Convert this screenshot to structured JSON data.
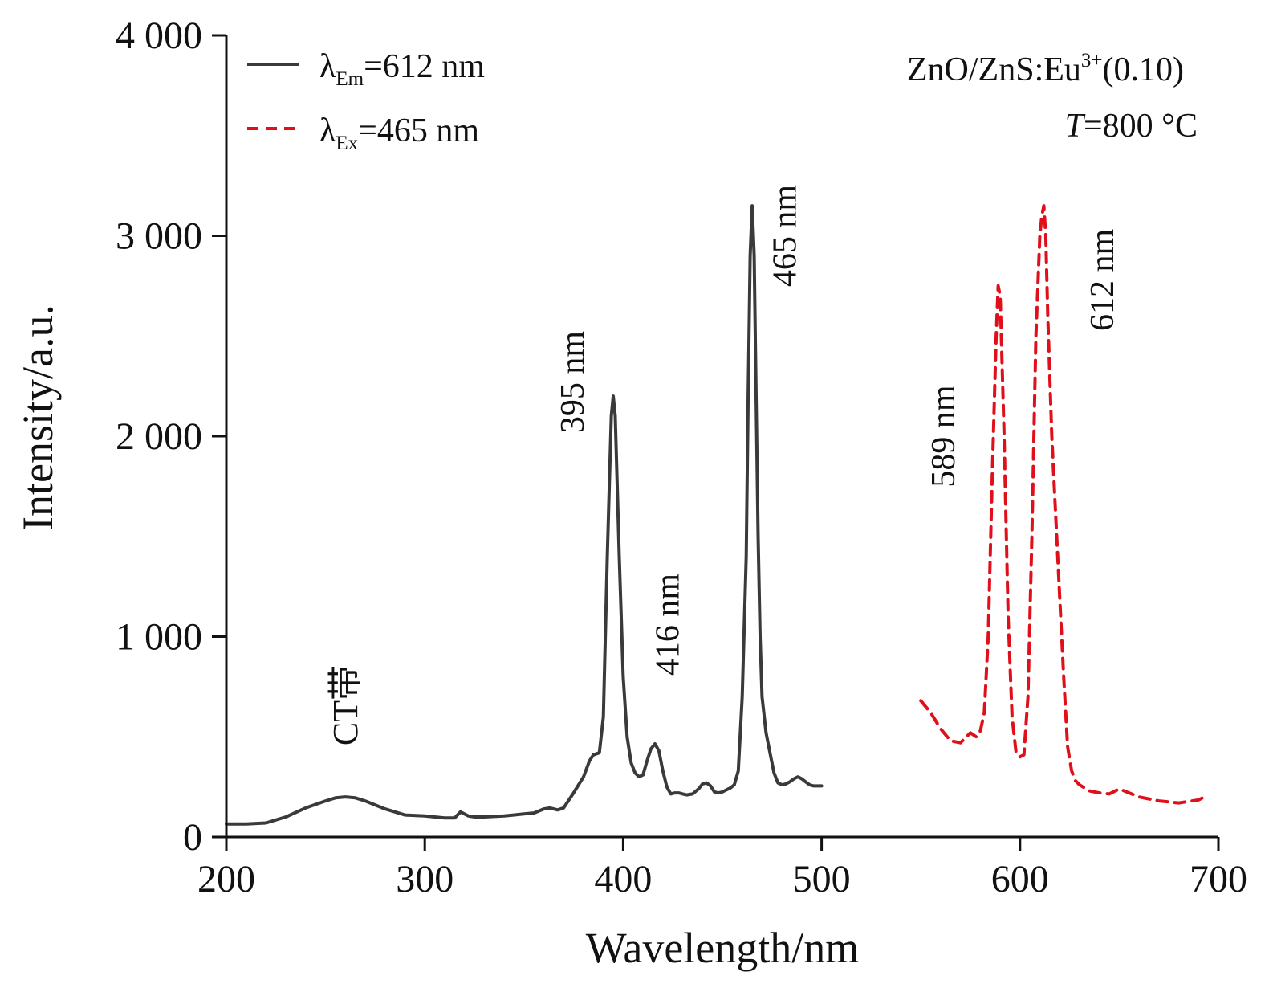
{
  "chart_data": {
    "type": "line",
    "xlabel": "Wavelength/nm",
    "ylabel": "Intensity/a.u.",
    "xlim": [
      200,
      700
    ],
    "ylim": [
      0,
      4000
    ],
    "x_ticks": [
      200,
      300,
      400,
      500,
      600,
      700
    ],
    "x_tick_labels": [
      "200",
      "300",
      "400",
      "500",
      "600",
      "700"
    ],
    "y_ticks": [
      0,
      1000,
      2000,
      3000,
      4000
    ],
    "y_tick_labels": [
      "0",
      "1 000",
      "2 000",
      "3 000",
      "4 000"
    ],
    "grid": false,
    "legend_position": "top-left",
    "series": [
      {
        "name": "λEm=612 nm",
        "name_main": "λ",
        "name_sub": "Em",
        "name_rest": "=612 nm",
        "color": "#3a3a3a",
        "style": "solid",
        "x": [
          200,
          210,
          220,
          230,
          240,
          250,
          255,
          260,
          265,
          270,
          280,
          290,
          300,
          305,
          310,
          315,
          318,
          322,
          325,
          330,
          340,
          350,
          355,
          360,
          363,
          367,
          370,
          375,
          380,
          383,
          385,
          388,
          390,
          392,
          394,
          395,
          396,
          398,
          400,
          402,
          404,
          406,
          408,
          410,
          412,
          414,
          416,
          418,
          420,
          422,
          424,
          426,
          428,
          430,
          432,
          435,
          438,
          440,
          442,
          444,
          446,
          448,
          450,
          452,
          454,
          456,
          458,
          460,
          462,
          463,
          464,
          465,
          466,
          467,
          468,
          469,
          470,
          472,
          474,
          476,
          478,
          480,
          482,
          484,
          486,
          488,
          490,
          492,
          494,
          496,
          498,
          500
        ],
        "y": [
          65,
          65,
          70,
          100,
          145,
          180,
          195,
          200,
          195,
          180,
          140,
          110,
          105,
          100,
          95,
          95,
          125,
          105,
          100,
          100,
          105,
          115,
          120,
          140,
          145,
          135,
          145,
          220,
          300,
          380,
          410,
          420,
          600,
          1400,
          2100,
          2200,
          2100,
          1400,
          800,
          500,
          370,
          320,
          300,
          310,
          380,
          440,
          465,
          430,
          330,
          250,
          215,
          220,
          220,
          215,
          210,
          215,
          240,
          265,
          270,
          255,
          225,
          220,
          225,
          235,
          245,
          260,
          330,
          700,
          1400,
          2200,
          2900,
          3150,
          2900,
          2200,
          1500,
          1000,
          700,
          520,
          420,
          320,
          270,
          260,
          265,
          275,
          290,
          300,
          290,
          275,
          260,
          255,
          255,
          255
        ]
      },
      {
        "name": "λEx=465 nm",
        "name_main": "λ",
        "name_sub": "Ex",
        "name_rest": "=465 nm",
        "color": "#e0101a",
        "style": "dashed",
        "x": [
          550,
          555,
          560,
          565,
          570,
          575,
          578,
          580,
          582,
          584,
          586,
          588,
          589,
          590,
          592,
          594,
          596,
          598,
          600,
          602,
          604,
          606,
          608,
          610,
          611,
          612,
          613,
          614,
          616,
          618,
          620,
          622,
          624,
          626,
          628,
          630,
          635,
          640,
          645,
          650,
          655,
          660,
          670,
          680,
          690,
          695
        ],
        "y": [
          680,
          620,
          540,
          480,
          470,
          520,
          500,
          530,
          620,
          1000,
          1800,
          2500,
          2750,
          2700,
          2000,
          1100,
          600,
          420,
          400,
          410,
          700,
          1500,
          2500,
          3000,
          3100,
          3150,
          3000,
          2600,
          2000,
          1600,
          1200,
          800,
          450,
          330,
          280,
          260,
          230,
          220,
          215,
          240,
          220,
          200,
          180,
          170,
          185,
          210
        ]
      }
    ],
    "annotations": {
      "sample_main": "ZnO/ZnS:Eu",
      "sample_sup": "3+",
      "sample_rest": "(0.10)",
      "temp_italic": "T",
      "temp_rest": "=800 °C",
      "ct_band": "CT带"
    },
    "peak_labels": [
      {
        "text": "395 nm",
        "x": 380,
        "y": 2270
      },
      {
        "text": "416 nm",
        "x": 428,
        "y": 1060
      },
      {
        "text": "465 nm",
        "x": 487,
        "y": 3000
      },
      {
        "text": "589 nm",
        "x": 567,
        "y": 2000
      },
      {
        "text": "612 nm",
        "x": 647,
        "y": 2780
      }
    ]
  }
}
